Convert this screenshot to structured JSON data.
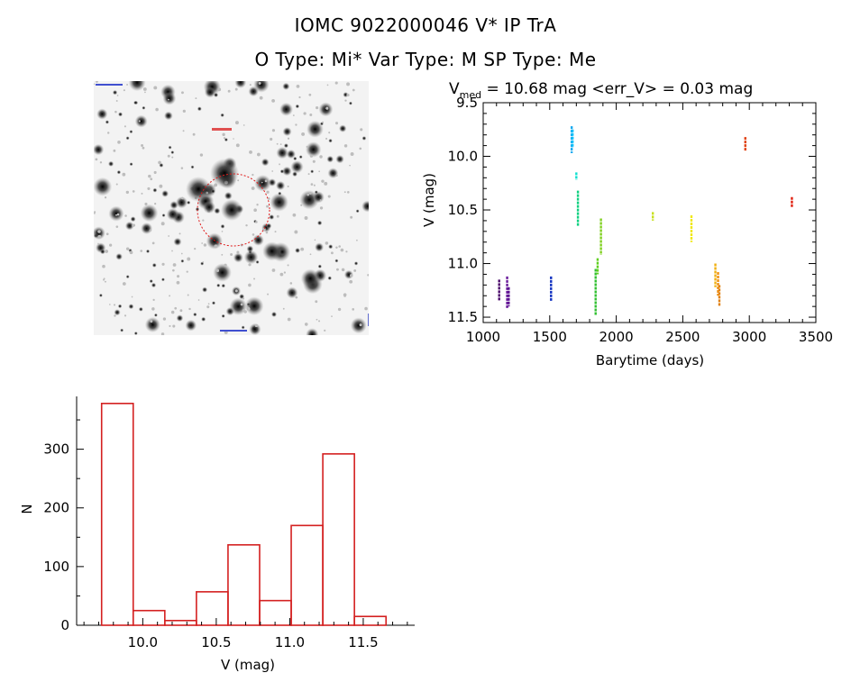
{
  "header": {
    "line1": "IOMC 9022000046    V* IP TrA",
    "line2": "O Type: Mi*  Var Type: M  SP Type: Me"
  },
  "colors": {
    "histogram_edge": "#d42020",
    "axis": "#000000",
    "finder_circle": "#e01818"
  },
  "chart_data": [
    {
      "type": "scatter",
      "title_main": "V",
      "title_sub": "med",
      "title_rest": " = 10.68 mag <err_V> = 0.03 mag",
      "xlabel": "Barytime (days)",
      "ylabel": "V (mag)",
      "xlim": [
        1000,
        3500
      ],
      "ylim": [
        11.55,
        9.5
      ],
      "y_inverted": true,
      "xticks": [
        1000,
        1500,
        2000,
        2500,
        3000,
        3500
      ],
      "yticks": [
        9.5,
        10.0,
        10.5,
        11.0,
        11.5
      ],
      "yticklabels": [
        "9.5",
        "10.0",
        "10.5",
        "11.0",
        "11.5"
      ],
      "segments": [
        {
          "x": 1120,
          "y1": 11.15,
          "y2": 11.35,
          "color": "#4a0a6a"
        },
        {
          "x": 1180,
          "y1": 11.12,
          "y2": 11.42,
          "color": "#6a1a9a"
        },
        {
          "x": 1192,
          "y1": 11.22,
          "y2": 11.4,
          "color": "#5a1090"
        },
        {
          "x": 1510,
          "y1": 11.12,
          "y2": 11.35,
          "color": "#1030c0"
        },
        {
          "x": 1665,
          "y1": 9.72,
          "y2": 9.97,
          "color": "#10a8f0"
        },
        {
          "x": 1672,
          "y1": 9.75,
          "y2": 9.92,
          "color": "#10c0f8"
        },
        {
          "x": 1700,
          "y1": 10.15,
          "y2": 10.22,
          "color": "#10e0d0"
        },
        {
          "x": 1712,
          "y1": 10.32,
          "y2": 10.65,
          "color": "#10d080"
        },
        {
          "x": 1845,
          "y1": 11.05,
          "y2": 11.48,
          "color": "#30c030"
        },
        {
          "x": 1860,
          "y1": 10.95,
          "y2": 11.1,
          "color": "#60d020"
        },
        {
          "x": 1885,
          "y1": 10.58,
          "y2": 10.92,
          "color": "#80d020"
        },
        {
          "x": 2275,
          "y1": 10.52,
          "y2": 10.6,
          "color": "#c8e020"
        },
        {
          "x": 2565,
          "y1": 10.55,
          "y2": 10.8,
          "color": "#f0e818"
        },
        {
          "x": 2745,
          "y1": 11.0,
          "y2": 11.22,
          "color": "#f0b010"
        },
        {
          "x": 2765,
          "y1": 11.08,
          "y2": 11.3,
          "color": "#f09010"
        },
        {
          "x": 2775,
          "y1": 11.2,
          "y2": 11.4,
          "color": "#e08010"
        },
        {
          "x": 2970,
          "y1": 9.82,
          "y2": 9.95,
          "color": "#e04010"
        },
        {
          "x": 3320,
          "y1": 10.38,
          "y2": 10.48,
          "color": "#e02010"
        }
      ]
    },
    {
      "type": "bar",
      "xlabel": "V (mag)",
      "ylabel": "N",
      "xlim": [
        9.55,
        11.85
      ],
      "ylim": [
        0,
        390
      ],
      "xticks": [
        10.0,
        10.5,
        11.0,
        11.5
      ],
      "xticklabels": [
        "10.0",
        "10.5",
        "11.0",
        "11.5"
      ],
      "yticks": [
        0,
        100,
        200,
        300
      ],
      "bin_edges": [
        9.72,
        9.935,
        10.15,
        10.365,
        10.58,
        10.795,
        11.01,
        11.225,
        11.44,
        11.655
      ],
      "values": [
        378,
        25,
        8,
        57,
        137,
        42,
        170,
        292,
        15
      ]
    }
  ]
}
